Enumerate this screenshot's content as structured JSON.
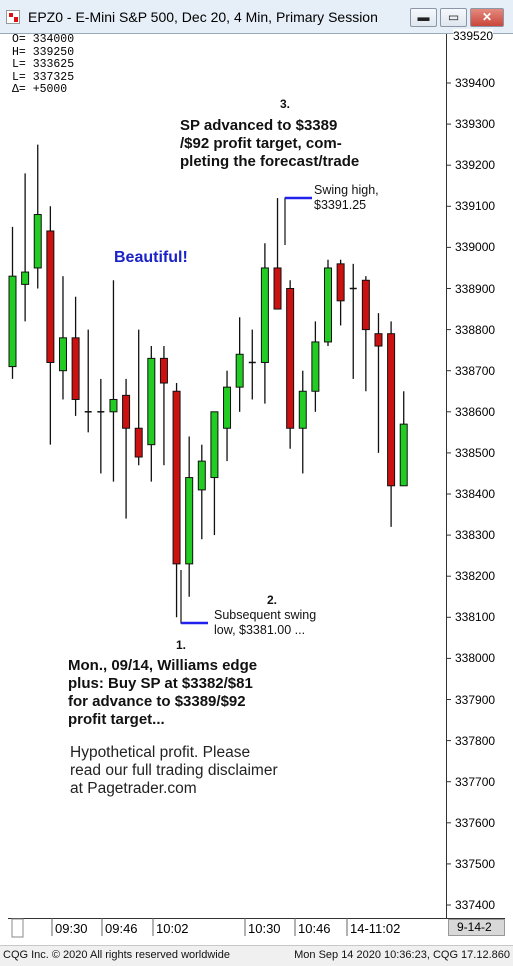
{
  "window": {
    "title": "EPZ0 - E-Mini S&P 500, Dec 20, 4 Min, Primary Session",
    "buttons": {
      "minimize": "▬",
      "maximize": "▭",
      "close": "✕"
    }
  },
  "info_box": {
    "open": "O=  334000",
    "high": "H=  339250",
    "low": "L=  333625",
    "last": "L=  337325",
    "change": "Δ=    +5000"
  },
  "annotations": {
    "beautiful": "Beautiful!",
    "step3_num": "3.",
    "step3_lines": [
      "SP advanced to $3389",
      "/$92 profit target, com-",
      "pleting the forecast/trade"
    ],
    "swing_high_lines": [
      "Swing high,",
      "$3391.25"
    ],
    "step2_num": "2.",
    "swing_low_lines": [
      "Subsequent swing",
      "low, $3381.00 ..."
    ],
    "step1_num": "1.",
    "step1_lines": [
      "Mon., 09/14, Williams edge",
      "plus: Buy SP at $3382/$81",
      "for advance to $3389/$92",
      "profit target..."
    ],
    "disclaimer_lines": [
      "Hypothetical profit. Please",
      "read our full trading disclaimer",
      "at Pagetrader.com"
    ]
  },
  "axes": {
    "y_top_partial": "339520",
    "x_date_label": "9-14-2",
    "x_tick_labels": [
      "09:30",
      "09:46",
      "10:02",
      "10:30",
      "10:46",
      "14-11:02"
    ]
  },
  "status_bar": {
    "left": "CQG Inc. © 2020 All rights reserved worldwide",
    "right": "Mon Sep 14 2020 10:36:23, CQG 17.12.860"
  },
  "colors": {
    "up": "#22cc22",
    "down": "#cc1111",
    "annotation_line": "#2222ee",
    "beautiful": "#1a22c8"
  },
  "chart_data": {
    "type": "candlestick",
    "title": "EPZ0 - E-Mini S&P 500, Dec 20, 4 Min, Primary Session",
    "ylim": [
      337300,
      339540
    ],
    "y_ticks": [
      337400,
      337500,
      337600,
      337700,
      337800,
      337900,
      338000,
      338100,
      338200,
      338300,
      338400,
      338500,
      338600,
      338700,
      338800,
      338900,
      339000,
      339100,
      339200,
      339300,
      339400
    ],
    "candles": [
      {
        "o": 338710,
        "h": 339050,
        "l": 338680,
        "c": 338930
      },
      {
        "o": 338910,
        "h": 339180,
        "l": 338820,
        "c": 338940
      },
      {
        "o": 338950,
        "h": 339250,
        "l": 338900,
        "c": 339080
      },
      {
        "o": 339040,
        "h": 339100,
        "l": 338520,
        "c": 338720
      },
      {
        "o": 338700,
        "h": 338930,
        "l": 338630,
        "c": 338780
      },
      {
        "o": 338780,
        "h": 338880,
        "l": 338590,
        "c": 338630
      },
      {
        "o": 338600,
        "h": 338800,
        "l": 338550,
        "c": 338600
      },
      {
        "o": 338600,
        "h": 338680,
        "l": 338450,
        "c": 338600
      },
      {
        "o": 338600,
        "h": 338920,
        "l": 338430,
        "c": 338630
      },
      {
        "o": 338640,
        "h": 338680,
        "l": 338340,
        "c": 338560
      },
      {
        "o": 338560,
        "h": 338800,
        "l": 338470,
        "c": 338490
      },
      {
        "o": 338520,
        "h": 338760,
        "l": 338430,
        "c": 338730
      },
      {
        "o": 338730,
        "h": 338760,
        "l": 338470,
        "c": 338670
      },
      {
        "o": 338650,
        "h": 338670,
        "l": 338100,
        "c": 338230
      },
      {
        "o": 338230,
        "h": 338540,
        "l": 338150,
        "c": 338440
      },
      {
        "o": 338410,
        "h": 338520,
        "l": 338290,
        "c": 338480
      },
      {
        "o": 338440,
        "h": 338580,
        "l": 338300,
        "c": 338600
      },
      {
        "o": 338560,
        "h": 338700,
        "l": 338480,
        "c": 338660
      },
      {
        "o": 338660,
        "h": 338830,
        "l": 338600,
        "c": 338740
      },
      {
        "o": 338720,
        "h": 338800,
        "l": 338630,
        "c": 338720
      },
      {
        "o": 338720,
        "h": 339010,
        "l": 338620,
        "c": 338950
      },
      {
        "o": 338950,
        "h": 339120,
        "l": 338850,
        "c": 338850
      },
      {
        "o": 338900,
        "h": 338920,
        "l": 338510,
        "c": 338560
      },
      {
        "o": 338560,
        "h": 338700,
        "l": 338450,
        "c": 338650
      },
      {
        "o": 338650,
        "h": 338820,
        "l": 338600,
        "c": 338770
      },
      {
        "o": 338770,
        "h": 338970,
        "l": 338760,
        "c": 338950
      },
      {
        "o": 338960,
        "h": 338970,
        "l": 338810,
        "c": 338870
      },
      {
        "o": 338900,
        "h": 338960,
        "l": 338680,
        "c": 338900
      },
      {
        "o": 338920,
        "h": 338930,
        "l": 338650,
        "c": 338800
      },
      {
        "o": 338790,
        "h": 338840,
        "l": 338500,
        "c": 338760
      },
      {
        "o": 338790,
        "h": 338820,
        "l": 338320,
        "c": 338420
      },
      {
        "o": 338420,
        "h": 338650,
        "l": 338420,
        "c": 338570
      }
    ]
  }
}
